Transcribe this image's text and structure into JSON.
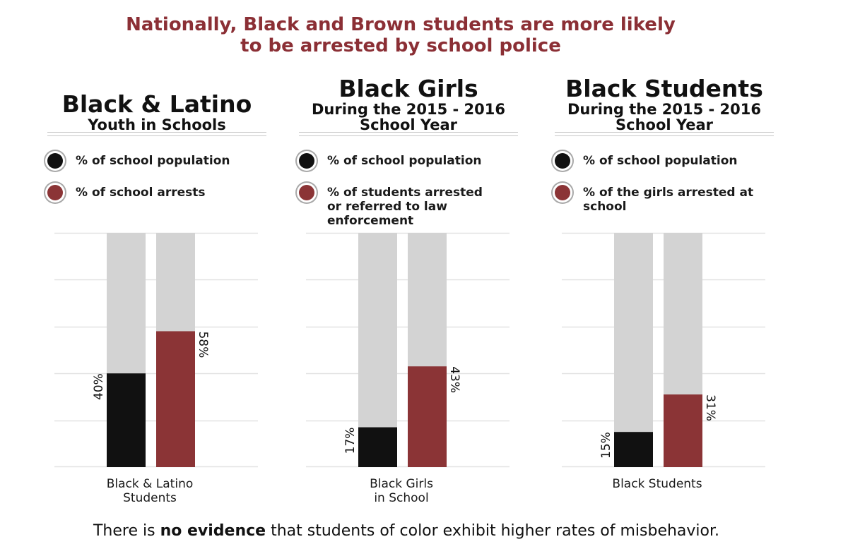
{
  "title": {
    "line1": "Nationally, Black and Brown students are more likely",
    "line2": "to be arrested by school police"
  },
  "colors": {
    "title": "#8b2f35",
    "population": "#111111",
    "arrests": "#8b3436",
    "track": "#d3d3d3",
    "gridline": "#e2e2e2"
  },
  "panels": [
    {
      "heading": "Black & Latino",
      "subheading_lines": [
        "Youth in Schools"
      ],
      "legend": [
        {
          "icon": "black-dot-icon",
          "label": "% of school population"
        },
        {
          "icon": "red-dot-icon",
          "label": "% of school arrests"
        }
      ],
      "category_lines": [
        "Black & Latino",
        "Students"
      ]
    },
    {
      "heading": "Black Girls",
      "subheading_lines": [
        "During the 2015 - 2016",
        "School Year"
      ],
      "legend": [
        {
          "icon": "black-dot-icon",
          "label": "% of school population"
        },
        {
          "icon": "red-dot-icon",
          "label": "% of students arrested or referred to law enforcement"
        }
      ],
      "category_lines": [
        "Black Girls",
        "in School"
      ]
    },
    {
      "heading": "Black Students",
      "subheading_lines": [
        "During the 2015 - 2016",
        "School Year"
      ],
      "legend": [
        {
          "icon": "black-dot-icon",
          "label": "% of school population"
        },
        {
          "icon": "red-dot-icon",
          "label": "% of the girls arrested at school"
        }
      ],
      "category_lines": [
        "Black Students"
      ]
    }
  ],
  "chart_data": [
    {
      "type": "bar",
      "categories": [
        "Black & Latino Students"
      ],
      "series": [
        {
          "name": "% of school population",
          "values": [
            40
          ],
          "label": "40%"
        },
        {
          "name": "% of school arrests",
          "values": [
            58
          ],
          "label": "58%"
        }
      ],
      "ylim": [
        0,
        100
      ],
      "grid": true
    },
    {
      "type": "bar",
      "categories": [
        "Black Girls in School"
      ],
      "series": [
        {
          "name": "% of school population",
          "values": [
            17
          ],
          "label": "17%"
        },
        {
          "name": "% of students arrested or referred to law enforcement",
          "values": [
            43
          ],
          "label": "43%"
        }
      ],
      "ylim": [
        0,
        100
      ],
      "grid": true
    },
    {
      "type": "bar",
      "categories": [
        "Black Students"
      ],
      "series": [
        {
          "name": "% of school population",
          "values": [
            15
          ],
          "label": "15%"
        },
        {
          "name": "% of the girls arrested at school",
          "values": [
            31
          ],
          "label": "31%"
        }
      ],
      "ylim": [
        0,
        100
      ],
      "grid": true
    }
  ],
  "footer": {
    "before": "There is ",
    "emphasis": "no evidence",
    "after": " that  students of color exhibit higher rates of misbehavior."
  }
}
